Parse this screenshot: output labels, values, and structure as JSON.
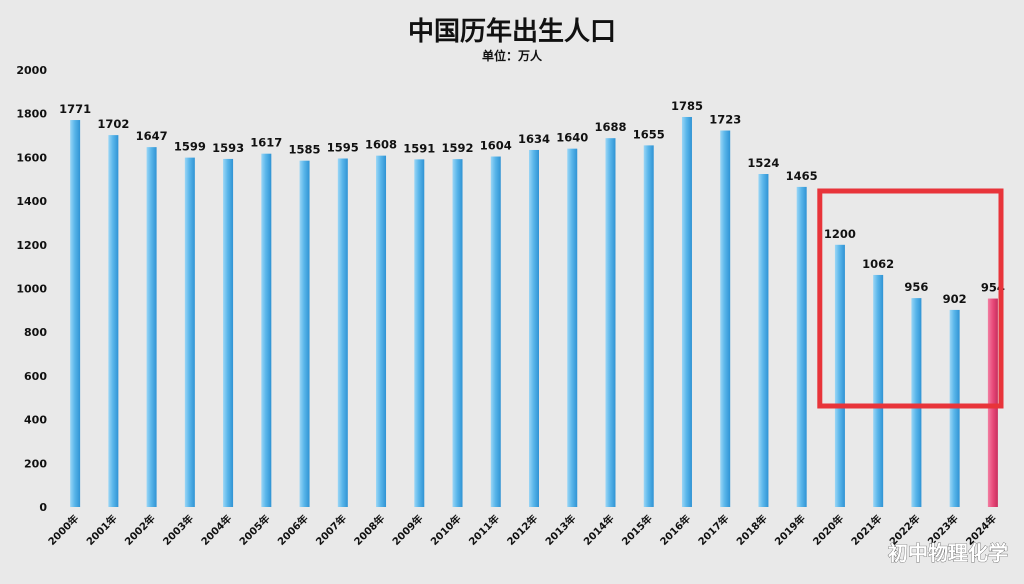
{
  "chart_data": {
    "type": "bar",
    "title": "中国历年出生人口",
    "subtitle": "单位：万人",
    "xlabel": "",
    "ylabel": "",
    "ylim": [
      0,
      2000
    ],
    "yticks": [
      0,
      200,
      400,
      600,
      800,
      1000,
      1200,
      1400,
      1600,
      1800,
      2000
    ],
    "grid": false,
    "categories": [
      "2000年",
      "2001年",
      "2002年",
      "2003年",
      "2004年",
      "2005年",
      "2006年",
      "2007年",
      "2008年",
      "2009年",
      "2010年",
      "2011年",
      "2012年",
      "2013年",
      "2014年",
      "2015年",
      "2016年",
      "2017年",
      "2018年",
      "2019年",
      "2020年",
      "2021年",
      "2022年",
      "2023年",
      "2024年"
    ],
    "values": [
      1771,
      1702,
      1647,
      1599,
      1593,
      1617,
      1585,
      1595,
      1608,
      1591,
      1592,
      1604,
      1634,
      1640,
      1688,
      1655,
      1785,
      1723,
      1524,
      1465,
      1200,
      1062,
      956,
      902,
      954
    ],
    "colors": {
      "bar": "#5ab6ea",
      "bar_highlight": "#e84a7a",
      "highlight_box": "#e8343a"
    },
    "highlight_box_range": [
      "2020年",
      "2024年"
    ],
    "highlight_bar": "2024年"
  },
  "watermark": "初中物理化学"
}
